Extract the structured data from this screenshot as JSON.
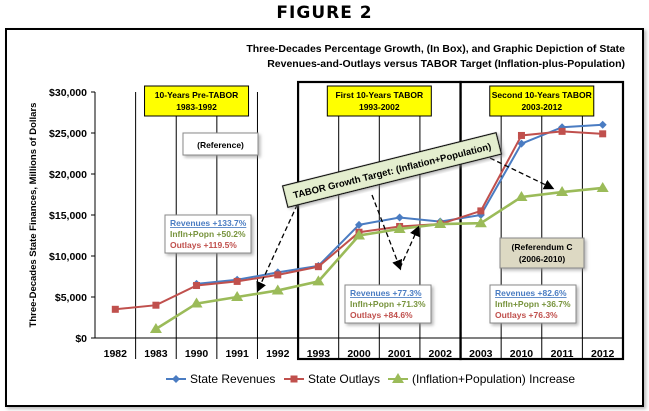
{
  "figure_label": "FIGURE 2",
  "chart_data": {
    "type": "line",
    "title": [
      "Three-Decades Percentage Growth, (In Box), and Graphic Depiction of State",
      "Revenues-and-Outlays versus TABOR Target (Inflation-plus-Population)"
    ],
    "ylabel": "Three-Decades State Finances, Millions of Dollars",
    "ylim": [
      0,
      30000
    ],
    "yticks": [
      0,
      5000,
      10000,
      15000,
      20000,
      25000,
      30000
    ],
    "ytick_labels": [
      "$0",
      "$5,000",
      "$10,000",
      "$15,000",
      "$20,000",
      "$25,000",
      "$30,000"
    ],
    "categories": [
      "1982",
      "1983",
      "1990",
      "1991",
      "1992",
      "1993",
      "2000",
      "2001",
      "2002",
      "2003",
      "2010",
      "2011",
      "2012"
    ],
    "grid": false,
    "legend": "bottom",
    "series": [
      {
        "name": "State Revenues",
        "color": "#4a7cc2",
        "marker": "diamond",
        "values": [
          null,
          null,
          6600,
          7100,
          8000,
          8800,
          13800,
          14700,
          14200,
          15000,
          23700,
          25700,
          26000
        ]
      },
      {
        "name": "State Outlays",
        "color": "#c0504d",
        "marker": "square",
        "values": [
          3500,
          4000,
          6400,
          6900,
          7700,
          8700,
          12900,
          13600,
          13900,
          15500,
          24700,
          25200,
          24900
        ]
      },
      {
        "name": "(Inflation+Population) Increase",
        "color": "#9bbb59",
        "marker": "triangle",
        "values": [
          null,
          1100,
          4200,
          5000,
          5800,
          6900,
          12500,
          13300,
          13900,
          14000,
          17200,
          17800,
          18300
        ]
      }
    ],
    "periods": [
      {
        "title": [
          "10-Years Pre-TABOR",
          "1983-1992"
        ]
      },
      {
        "title": [
          "First 10-Years TABOR",
          "1993-2002"
        ]
      },
      {
        "title": [
          "Second 10-Years TABOR",
          "2003-2012"
        ]
      }
    ],
    "annotations": {
      "reference": "(Reference)",
      "tabor_target": "TABOR Growth Target: (Inflation+Population)",
      "referendum": [
        "(Referendum C",
        "(2006-2010)"
      ]
    },
    "growth_boxes": [
      {
        "revenues": "Revenues  +133.7%",
        "infln": "Infln+Popn  +50.2%",
        "outlays": "Outlays     +119.5%"
      },
      {
        "revenues": "Revenues  +77.3%",
        "infln": "Infln+Popn  +71.3%",
        "outlays": "Outlays     +84.6%"
      },
      {
        "revenues": "Revenues  +82.6%",
        "infln": "Infln+Popn  +36.7%",
        "outlays": "Outlays     +76.3%"
      }
    ]
  }
}
